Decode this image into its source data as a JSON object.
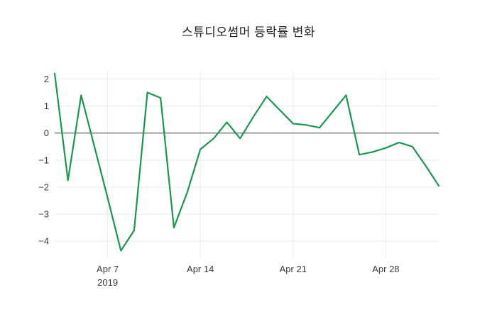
{
  "header": {
    "title": "스튜디오썸머 등락률 변화"
  },
  "chart_data": {
    "type": "line",
    "title": "스튜디오썸머 등락률 변화",
    "xlabel": "",
    "ylabel": "",
    "legend": "none",
    "grid": true,
    "zero_line": true,
    "xlim": [
      "2019-04-03",
      "2019-05-02"
    ],
    "ylim": [
      -4.65,
      2.3
    ],
    "yticks": [
      2,
      1,
      0,
      -1,
      -2,
      -3,
      -4
    ],
    "xticks": [
      {
        "date": "2019-04-07",
        "label": "Apr 7",
        "sub": "2019"
      },
      {
        "date": "2019-04-14",
        "label": "Apr 14",
        "sub": ""
      },
      {
        "date": "2019-04-21",
        "label": "Apr 21",
        "sub": ""
      },
      {
        "date": "2019-04-28",
        "label": "Apr 28",
        "sub": ""
      }
    ],
    "series": [
      {
        "name": "스튜디오썸머 등락률",
        "color": "#1b9750",
        "x": [
          "2019-04-03",
          "2019-04-04",
          "2019-04-05",
          "2019-04-06",
          "2019-04-07",
          "2019-04-08",
          "2019-04-09",
          "2019-04-10",
          "2019-04-11",
          "2019-04-12",
          "2019-04-13",
          "2019-04-14",
          "2019-04-15",
          "2019-04-16",
          "2019-04-17",
          "2019-04-18",
          "2019-04-19",
          "2019-04-20",
          "2019-04-21",
          "2019-04-22",
          "2019-04-23",
          "2019-04-24",
          "2019-04-25",
          "2019-04-26",
          "2019-04-27",
          "2019-04-28",
          "2019-04-29",
          "2019-04-30",
          "2019-05-01",
          "2019-05-02"
        ],
        "values": [
          2.2,
          -1.75,
          1.4,
          -0.5,
          -2.4,
          -4.35,
          -3.6,
          1.5,
          1.3,
          -3.5,
          -2.2,
          -0.6,
          -0.2,
          0.4,
          -0.2,
          0.6,
          1.35,
          0.85,
          0.35,
          0.3,
          0.2,
          0.8,
          1.4,
          -0.8,
          -0.7,
          -0.55,
          -0.35,
          -0.5,
          -1.2,
          -1.95
        ]
      }
    ],
    "colors": {
      "line": "#1b9750",
      "grid": "#ececec",
      "zero_line": "#444444",
      "tick_text": "#3b3b3b",
      "title_text": "#222222"
    }
  }
}
